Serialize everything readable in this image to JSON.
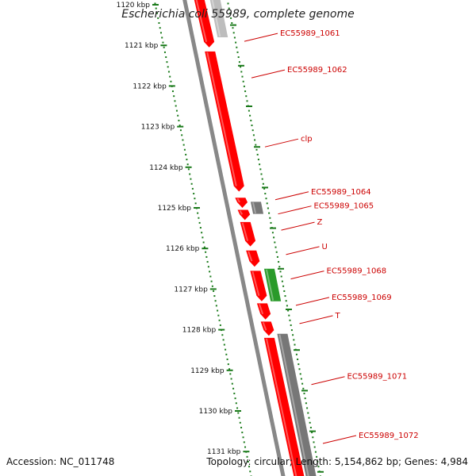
{
  "title": "Escherichia coli 55989, complete genome",
  "footer": {
    "accession": "Accession: NC_011748",
    "summary": "Topology: circular; Length: 5,154,862 bp; Genes: 4,984"
  },
  "colors": {
    "forward_cds": "#ff0000",
    "reverse_cds_gray": "#777777",
    "reverse_cds_light": "#bdbdbd",
    "green_feature": "#2a9a2a",
    "ruler": "#1a7a1a",
    "label": "#cc0000",
    "backbone": "#888888"
  },
  "ruler": {
    "ticks": [
      {
        "kbp": 1120,
        "label": "1120 kbp"
      },
      {
        "kbp": 1121,
        "label": "1121 kbp"
      },
      {
        "kbp": 1122,
        "label": "1122 kbp"
      },
      {
        "kbp": 1123,
        "label": "1123 kbp"
      },
      {
        "kbp": 1124,
        "label": "1124 kbp"
      },
      {
        "kbp": 1125,
        "label": "1125 kbp"
      },
      {
        "kbp": 1126,
        "label": "1126 kbp"
      },
      {
        "kbp": 1127,
        "label": "1127 kbp"
      },
      {
        "kbp": 1128,
        "label": "1128 kbp"
      },
      {
        "kbp": 1129,
        "label": "1129 kbp"
      },
      {
        "kbp": 1130,
        "label": "1130 kbp"
      },
      {
        "kbp": 1131,
        "label": "1131 kbp"
      }
    ]
  },
  "features": [
    {
      "track": "forward",
      "start": 1119.8,
      "end": 1121.05,
      "color": "red",
      "arrow": true
    },
    {
      "track": "forward",
      "start": 1121.15,
      "end": 1124.6,
      "color": "red",
      "arrow": true
    },
    {
      "track": "forward",
      "start": 1124.75,
      "end": 1125.0,
      "color": "red",
      "arrow": true
    },
    {
      "track": "forward",
      "start": 1125.05,
      "end": 1125.3,
      "color": "red",
      "arrow": true
    },
    {
      "track": "forward",
      "start": 1125.35,
      "end": 1125.95,
      "color": "red",
      "arrow": true
    },
    {
      "track": "forward",
      "start": 1126.05,
      "end": 1126.45,
      "color": "red",
      "arrow": true
    },
    {
      "track": "forward",
      "start": 1126.55,
      "end": 1127.3,
      "color": "red",
      "arrow": true
    },
    {
      "track": "forward",
      "start": 1127.35,
      "end": 1127.75,
      "color": "red",
      "arrow": true
    },
    {
      "track": "forward",
      "start": 1127.8,
      "end": 1128.15,
      "color": "red",
      "arrow": true
    },
    {
      "track": "forward",
      "start": 1128.2,
      "end": 1132.0,
      "color": "red",
      "arrow": true
    },
    {
      "track": "reverse",
      "start": 1119.8,
      "end": 1120.8,
      "color": "light",
      "arrow": false
    },
    {
      "track": "reverse",
      "start": 1124.85,
      "end": 1125.15,
      "color": "gray",
      "arrow": false
    },
    {
      "track": "reverse",
      "start": 1126.5,
      "end": 1127.3,
      "color": "green",
      "arrow": false
    },
    {
      "track": "reverse",
      "start": 1128.1,
      "end": 1132.0,
      "color": "gray",
      "arrow": false
    }
  ],
  "labels": [
    {
      "text": "EC55989_1061",
      "kbp": 1120.9
    },
    {
      "text": "EC55989_1062",
      "kbp": 1121.8
    },
    {
      "text": "clp",
      "kbp": 1123.5
    },
    {
      "text": "EC55989_1064",
      "kbp": 1124.8
    },
    {
      "text": "EC55989_1065",
      "kbp": 1125.15
    },
    {
      "text": "Z",
      "kbp": 1125.55
    },
    {
      "text": "U",
      "kbp": 1126.15
    },
    {
      "text": "EC55989_1068",
      "kbp": 1126.75
    },
    {
      "text": "EC55989_1069",
      "kbp": 1127.4
    },
    {
      "text": "T",
      "kbp": 1127.85
    },
    {
      "text": "EC55989_1071",
      "kbp": 1129.35
    },
    {
      "text": "EC55989_1072",
      "kbp": 1130.8
    }
  ]
}
